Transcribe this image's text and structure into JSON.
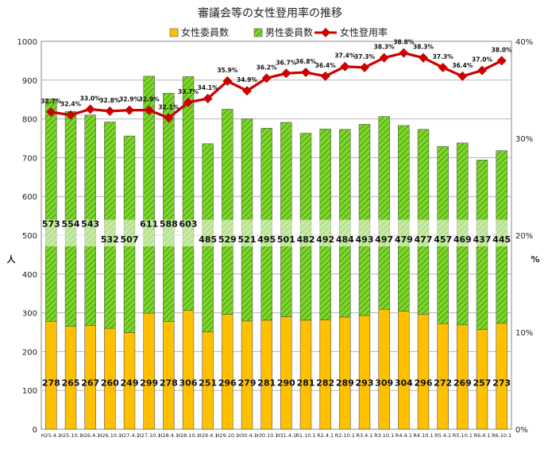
{
  "chart_data": {
    "type": "bar",
    "stacked": true,
    "title": "審議会等の女性登用率の推移",
    "ylabel": "人",
    "y2label": "%",
    "ylim": [
      0,
      1000
    ],
    "y2lim": [
      0,
      40
    ],
    "yticks": [
      "0",
      "100",
      "200",
      "300",
      "400",
      "500",
      "600",
      "700",
      "800",
      "900",
      "1000"
    ],
    "y2ticks": [
      "0%",
      "10%",
      "20%",
      "30%",
      "40%"
    ],
    "grid": true,
    "legend_position": "top-center",
    "categories": [
      "H25.4.1",
      "H25.10.1",
      "H26.4.1",
      "H26.10.1",
      "H27.4.1",
      "H27.10.1",
      "H28.4.1",
      "H28.10.1",
      "H29.4.1",
      "H29.10.1",
      "H30.4.1",
      "H30.10.1",
      "H31.4.1",
      "R1.10.1",
      "R2.4.1",
      "R2.10.1",
      "R3.4.1",
      "R3.10.1",
      "R4.4.1",
      "R4.10.1",
      "R5.4.1",
      "R5.10.1",
      "R6.4.1",
      "R6.10.1"
    ],
    "series": [
      {
        "name": "女性委員数",
        "kind": "bar",
        "color": "#ffc000",
        "values": [
          278,
          265,
          267,
          260,
          249,
          299,
          278,
          306,
          251,
          296,
          279,
          281,
          290,
          281,
          282,
          289,
          293,
          309,
          304,
          296,
          272,
          269,
          257,
          273
        ]
      },
      {
        "name": "男性委員数",
        "kind": "bar",
        "color": "#66cc00",
        "values": [
          573,
          554,
          543,
          532,
          507,
          611,
          588,
          603,
          485,
          529,
          521,
          495,
          501,
          482,
          492,
          484,
          493,
          497,
          479,
          477,
          457,
          469,
          437,
          445
        ]
      },
      {
        "name": "女性登用率",
        "kind": "line",
        "axis": "right",
        "color": "#cc0000",
        "values": [
          32.7,
          32.4,
          33.0,
          32.8,
          32.9,
          32.9,
          32.1,
          33.7,
          34.1,
          35.9,
          34.9,
          36.2,
          36.7,
          36.8,
          36.4,
          37.4,
          37.3,
          38.3,
          38.8,
          38.3,
          37.3,
          36.4,
          37.0,
          38.0
        ],
        "labels": [
          "32.7%",
          "32.4%",
          "33.0%",
          "32.8%",
          "32.9%",
          "32.9%",
          "32.1%",
          "33.7%",
          "34.1%",
          "35.9%",
          "34.9%",
          "36.2%",
          "36.7%",
          "36.8%",
          "36.4%",
          "37.4%",
          "37.3%",
          "38.3%",
          "38.8%",
          "38.3%",
          "37.3%",
          "36.4%",
          "37.0%",
          "38.0%"
        ]
      }
    ]
  }
}
